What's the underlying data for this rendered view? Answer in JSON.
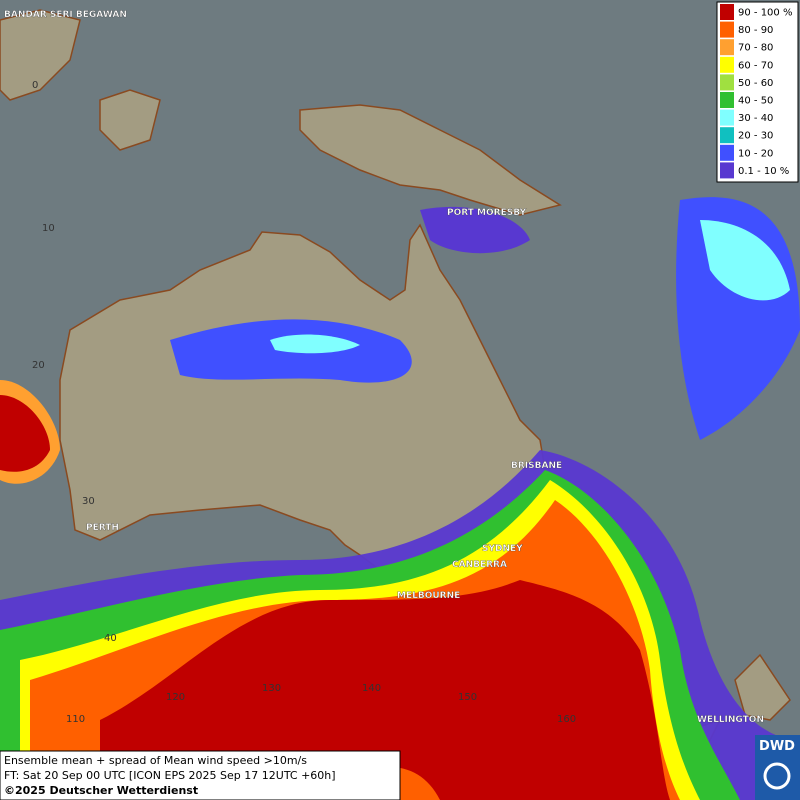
{
  "legend": {
    "entries": [
      {
        "label": "90 - 100 %",
        "color": "#c00000"
      },
      {
        "label": "80 - 90",
        "color": "#ff6000"
      },
      {
        "label": "70 - 80",
        "color": "#ffa030"
      },
      {
        "label": "60 - 70",
        "color": "#ffff00"
      },
      {
        "label": "50 - 60",
        "color": "#a0e040"
      },
      {
        "label": "40 - 50",
        "color": "#30c030"
      },
      {
        "label": "30 - 40",
        "color": "#80ffff"
      },
      {
        "label": "20 - 30",
        "color": "#10c0c0"
      },
      {
        "label": "10 - 20",
        "color": "#4050ff"
      },
      {
        "label": "0.1 - 10 %",
        "color": "#5838d0"
      }
    ]
  },
  "cities": [
    "BANDAR SERI BEGAWAN",
    "PORT MORESBY",
    "BRISBANE",
    "SYDNEY",
    "CANBERRA",
    "MELBOURNE",
    "PERTH",
    "WELLINGTON"
  ],
  "grid_labels": [
    "0",
    "10",
    "20",
    "30",
    "40",
    "110",
    "120",
    "130",
    "140",
    "150",
    "160"
  ],
  "caption": {
    "line1": "Ensemble mean + spread of Mean wind speed >10m/s",
    "line2": "FT: Sat 20 Sep 00 UTC [ICON EPS 2025 Sep 17 12UTC +60h]",
    "line3": "©2025 Deutscher Wetterdienst"
  },
  "logo": "DWD"
}
